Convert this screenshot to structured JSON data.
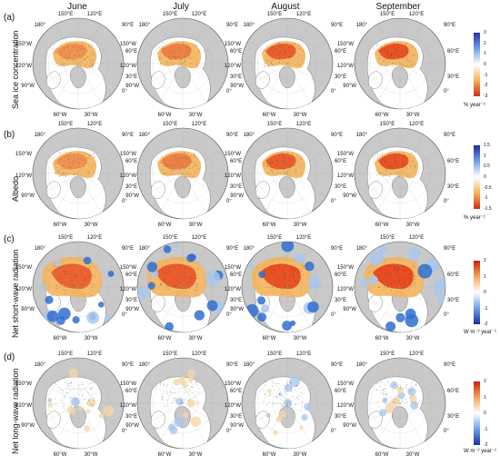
{
  "columns": [
    "June",
    "July",
    "August",
    "September"
  ],
  "rows": [
    {
      "letter": "(a)",
      "label": "Sea ice concentration",
      "unit": "% year⁻¹",
      "ticks": [
        "3",
        "2",
        "1",
        "0",
        "-1",
        "-2",
        "-3"
      ],
      "palette": "div-bwr",
      "variable": "sic"
    },
    {
      "letter": "(b)",
      "label": "Albedo",
      "unit": "% year⁻¹",
      "ticks": [
        "1.5",
        "1",
        "0.5",
        "0",
        "-0.5",
        "-1",
        "-1.5"
      ],
      "palette": "div-bwr",
      "variable": "albedo"
    },
    {
      "letter": "(c)",
      "label": "Net short-wave radiation",
      "unit": "W m⁻² year⁻¹",
      "ticks": [
        "2",
        "1",
        "0",
        "-1",
        "-2"
      ],
      "palette": "div-rwb",
      "variable": "sw"
    },
    {
      "letter": "(d)",
      "label": "Net long-wave radiation",
      "unit": "W m⁻² year⁻¹",
      "ticks": [
        "2",
        "1",
        "0",
        "-1",
        "-2"
      ],
      "palette": "div-rwb",
      "variable": "lw"
    }
  ],
  "lon_labels": {
    "top": [
      "150°E",
      "120°E"
    ],
    "upper_left": [
      "180°",
      "150°W"
    ],
    "upper_right": [
      "90°E",
      "60°E"
    ],
    "left": [
      "120°W",
      "90°W"
    ],
    "right": [
      "30°E",
      "0°"
    ],
    "bottom": [
      "60°W",
      "30°W"
    ]
  },
  "colors": {
    "land": "#c9c9c9",
    "ocean": "#ffffff",
    "warm": "#e8451c",
    "warm_light": "#f4b45a",
    "cool": "#2f6fd0",
    "cool_light": "#a9c8ee"
  }
}
